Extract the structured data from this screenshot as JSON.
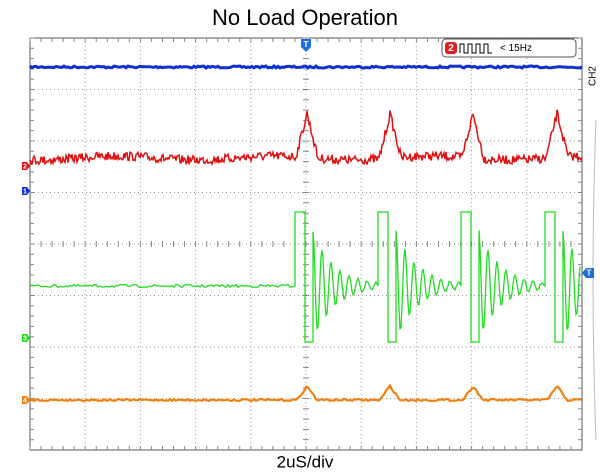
{
  "title": "No Load Operation",
  "footer": "2uS/div",
  "channel_markers": [
    "1",
    "2",
    "3",
    "4"
  ],
  "trigger_marker": "T",
  "level_marker": "T",
  "indicator": {
    "channel": "2",
    "text": "< 15Hz"
  },
  "side_label": "CH2"
}
